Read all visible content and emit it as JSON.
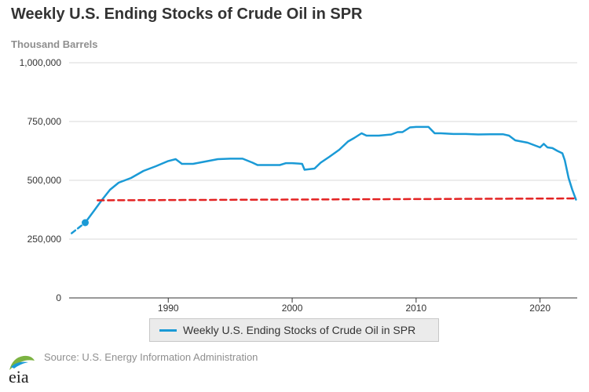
{
  "chart_data": {
    "type": "line",
    "title": "Weekly U.S. Ending Stocks of Crude Oil in SPR",
    "ylabel": "Thousand Barrels",
    "xlim": [
      1982.0,
      2023.0
    ],
    "ylim": [
      0,
      1000000
    ],
    "y_ticks": [
      0,
      250000,
      500000,
      750000,
      1000000
    ],
    "y_tick_labels": [
      "0",
      "250,000",
      "500,000",
      "750,000",
      "1,000,000"
    ],
    "x_ticks": [
      1990,
      2000,
      2010,
      2020
    ],
    "x_tick_labels": [
      "1990",
      "2000",
      "2010",
      "2020"
    ],
    "grid": "horizontal",
    "legend": "bottom-center",
    "series": [
      {
        "name": "Weekly U.S. Ending Stocks of Crude Oil in SPR",
        "color": "#1a9ad6",
        "style": "solid",
        "x": [
          1983.3,
          1984.0,
          1984.7,
          1985.3,
          1986.0,
          1987.0,
          1988.0,
          1989.0,
          1990.0,
          1990.6,
          1991.1,
          1992.0,
          1993.0,
          1994.0,
          1995.0,
          1996.0,
          1996.8,
          1997.2,
          1998.0,
          1999.0,
          1999.5,
          2000.0,
          2000.8,
          2001.0,
          2001.8,
          2002.3,
          2003.0,
          2003.8,
          2004.5,
          2005.0,
          2005.6,
          2006.0,
          2007.0,
          2008.0,
          2008.5,
          2008.9,
          2009.5,
          2010.0,
          2011.0,
          2011.5,
          2012.0,
          2013.0,
          2014.0,
          2015.0,
          2016.0,
          2017.0,
          2017.5,
          2018.0,
          2019.0,
          2019.5,
          2020.0,
          2020.3,
          2020.6,
          2021.0,
          2021.4,
          2021.8,
          2022.0,
          2022.3,
          2022.6,
          2022.9
        ],
        "y": [
          320000,
          370000,
          420000,
          460000,
          490000,
          510000,
          540000,
          560000,
          582000,
          590000,
          570000,
          570000,
          580000,
          590000,
          592000,
          592000,
          575000,
          565000,
          565000,
          565000,
          573000,
          573000,
          570000,
          545000,
          550000,
          575000,
          600000,
          630000,
          665000,
          680000,
          700000,
          690000,
          690000,
          695000,
          705000,
          705000,
          725000,
          727000,
          727000,
          700000,
          700000,
          697000,
          697000,
          695000,
          696000,
          696000,
          690000,
          670000,
          660000,
          650000,
          640000,
          655000,
          640000,
          637000,
          625000,
          615000,
          585000,
          510000,
          460000,
          418000
        ]
      },
      {
        "name": "",
        "color": "#1a9ad6",
        "style": "dashed",
        "x": [
          1982.2,
          1983.3
        ],
        "y": [
          275000,
          320000
        ]
      },
      {
        "name": "",
        "color": "#e32222",
        "style": "dashed",
        "x": [
          1984.3,
          2023.0
        ],
        "y": [
          415000,
          423000
        ]
      }
    ],
    "markers": [
      {
        "x": 1983.3,
        "y": 320000,
        "color": "#1a9ad6"
      }
    ]
  },
  "legend_label": "Weekly U.S. Ending Stocks of Crude Oil in SPR",
  "source_text": "Source: U.S. Energy Information Administration",
  "logo_text": "eia",
  "colors": {
    "title": "#333333",
    "muted": "#8f8f8f",
    "grid": "#d8d8d8",
    "axis": "#333333"
  }
}
